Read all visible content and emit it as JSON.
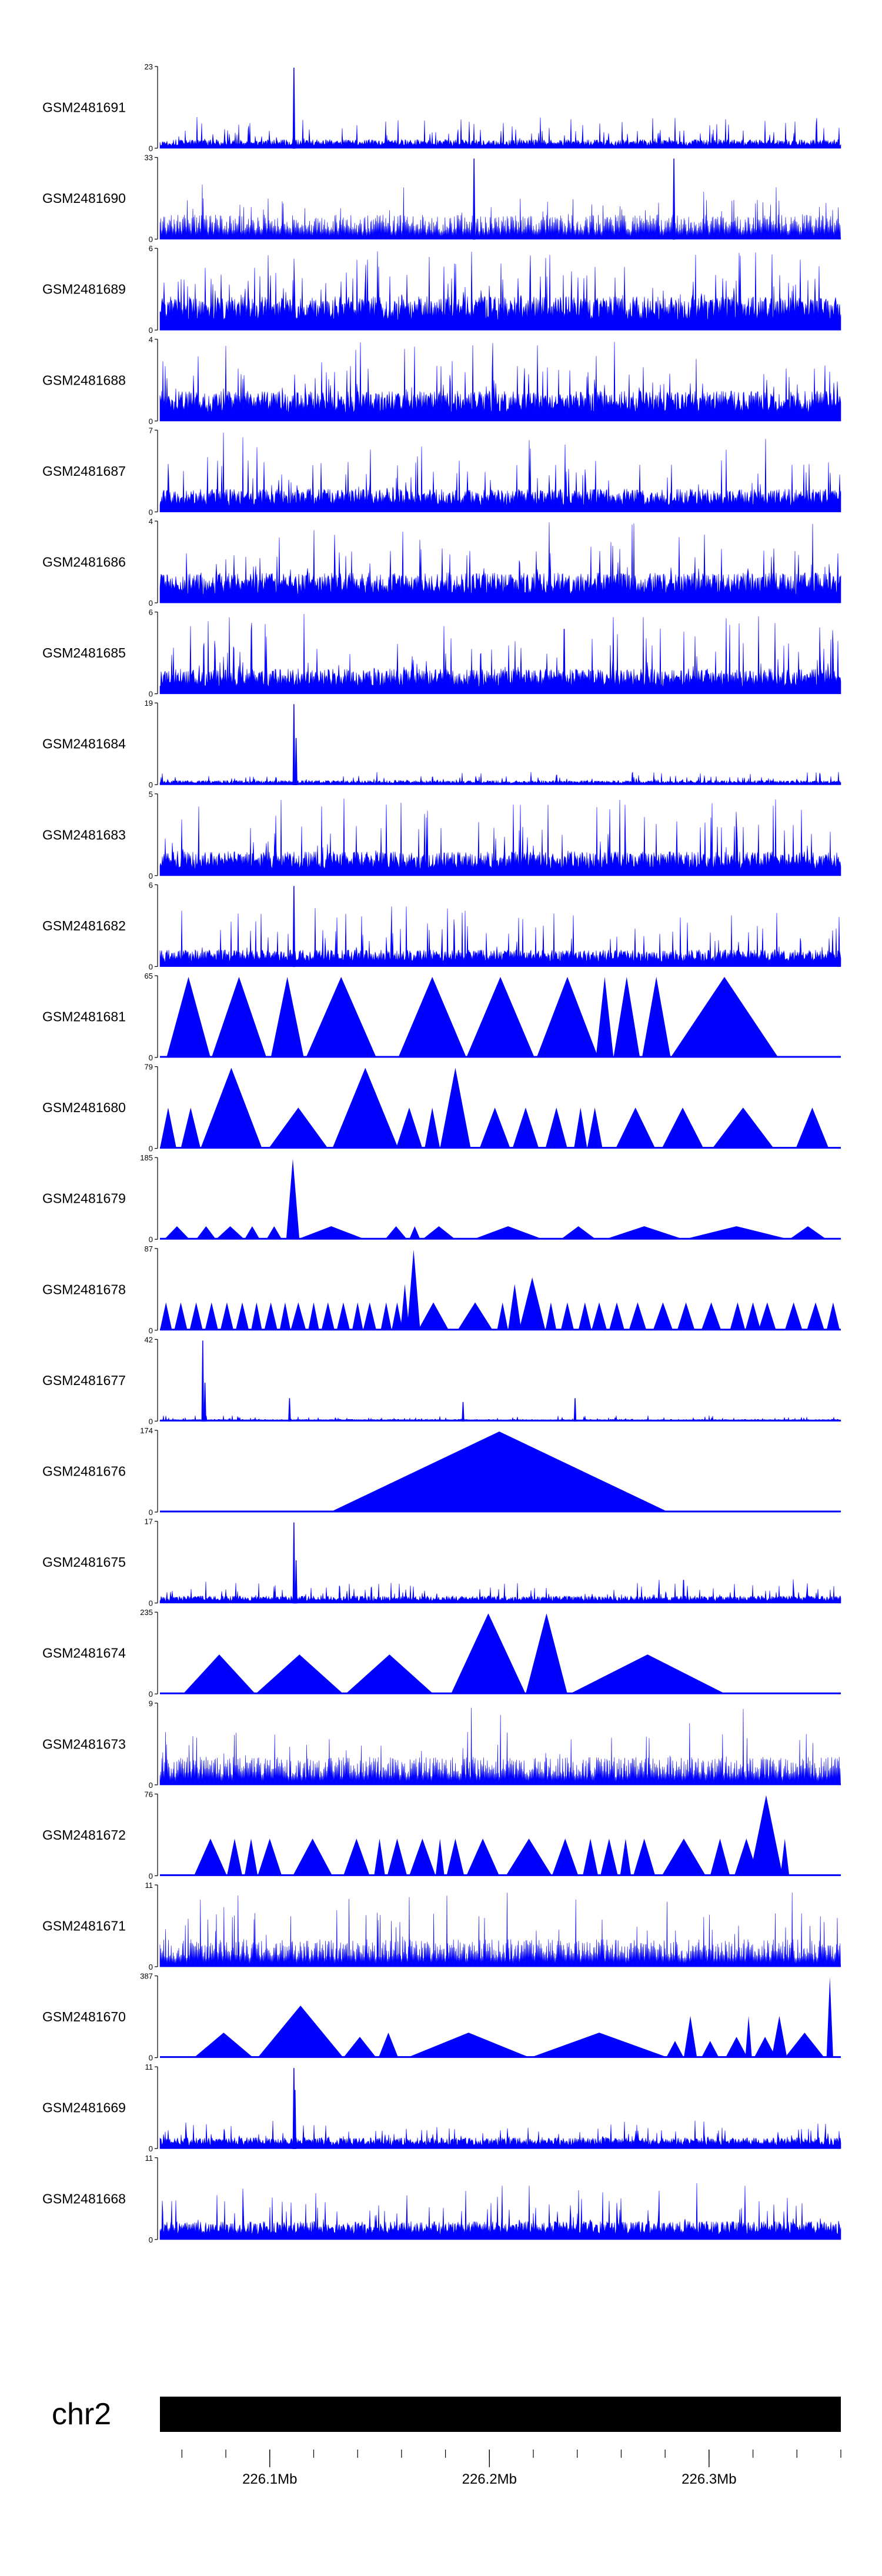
{
  "colors": {
    "signal": "#0000ff",
    "axis": "#000000",
    "ideogram": "#000000"
  },
  "chart_data": {
    "type": "area",
    "title": "",
    "chromosome": "chr2",
    "x_unit": "Mb",
    "xlim": [
      226.05,
      226.36
    ],
    "x_ticks": [
      {
        "value": 226.1,
        "label": "226.1Mb"
      },
      {
        "value": 226.2,
        "label": "226.2Mb"
      },
      {
        "value": 226.3,
        "label": "226.3Mb"
      }
    ],
    "minor_tick_step": 0.02,
    "tracks": [
      {
        "name": "GSM2481691",
        "ymax": 23,
        "ymax_label": "23",
        "style": "dense",
        "base": 2,
        "spikes": [
          [
            226.111,
            23
          ]
        ],
        "peak": 9
      },
      {
        "name": "GSM2481690",
        "ymax": 33,
        "ymax_label": "33",
        "style": "comb",
        "base": 8,
        "spikes": [
          [
            226.193,
            33
          ],
          [
            226.284,
            33
          ]
        ],
        "peak": 24
      },
      {
        "name": "GSM2481689",
        "ymax": 6,
        "ymax_label": "6",
        "style": "dense",
        "base": 2,
        "spikes": [],
        "peak": 6
      },
      {
        "name": "GSM2481688",
        "ymax": 4,
        "ymax_label": "4",
        "style": "dense",
        "base": 1.2,
        "spikes": [],
        "peak": 4
      },
      {
        "name": "GSM2481687",
        "ymax": 7,
        "ymax_label": "7",
        "style": "dense",
        "base": 1.6,
        "spikes": [],
        "peak": 7
      },
      {
        "name": "GSM2481686",
        "ymax": 4,
        "ymax_label": "4",
        "style": "dense",
        "base": 1.2,
        "spikes": [],
        "peak": 4
      },
      {
        "name": "GSM2481685",
        "ymax": 6,
        "ymax_label": "6",
        "style": "dense",
        "base": 1.5,
        "spikes": [],
        "peak": 6
      },
      {
        "name": "GSM2481684",
        "ymax": 19,
        "ymax_label": "19",
        "style": "dense",
        "base": 0.8,
        "spikes": [
          [
            226.111,
            19
          ],
          [
            226.112,
            11
          ]
        ],
        "peak": 3
      },
      {
        "name": "GSM2481683",
        "ymax": 5,
        "ymax_label": "5",
        "style": "dense",
        "base": 1.2,
        "spikes": [],
        "peak": 5
      },
      {
        "name": "GSM2481682",
        "ymax": 6,
        "ymax_label": "6",
        "style": "dense",
        "base": 1.0,
        "spikes": [
          [
            226.111,
            6
          ]
        ],
        "peak": 4.5
      },
      {
        "name": "GSM2481681",
        "ymax": 65,
        "ymax_label": "65",
        "style": "triangles",
        "tris": [
          [
            226.053,
            226.073,
            65
          ],
          [
            226.0735,
            226.0985,
            65
          ],
          [
            226.1005,
            226.1155,
            65
          ],
          [
            226.1165,
            226.1485,
            65
          ],
          [
            226.1585,
            226.1895,
            65
          ],
          [
            226.1895,
            226.2205,
            65
          ],
          [
            226.2215,
            226.2495,
            65
          ],
          [
            226.2485,
            226.2565,
            65
          ],
          [
            226.2565,
            226.2685,
            65
          ],
          [
            226.2695,
            226.2825,
            65
          ],
          [
            226.2825,
            226.3315,
            65
          ]
        ]
      },
      {
        "name": "GSM2481680",
        "ymax": 79,
        "ymax_label": "79",
        "style": "triangles",
        "tris": [
          [
            226.05,
            226.0575,
            40
          ],
          [
            226.0595,
            226.0685,
            40
          ],
          [
            226.0685,
            226.0965,
            79
          ],
          [
            226.0995,
            226.1265,
            40
          ],
          [
            226.1285,
            226.1585,
            79
          ],
          [
            226.1575,
            226.1695,
            40
          ],
          [
            226.1705,
            226.1775,
            40
          ],
          [
            226.1775,
            226.1915,
            79
          ],
          [
            226.1955,
            226.2095,
            40
          ],
          [
            226.2105,
            226.2225,
            40
          ],
          [
            226.2255,
            226.2355,
            40
          ],
          [
            226.2385,
            226.2445,
            40
          ],
          [
            226.2445,
            226.2515,
            40
          ],
          [
            226.2575,
            226.2755,
            40
          ],
          [
            226.2785,
            226.2975,
            40
          ],
          [
            226.3015,
            226.3295,
            40
          ],
          [
            226.3395,
            226.3545,
            40
          ]
        ]
      },
      {
        "name": "GSM2481679",
        "ymax": 185,
        "ymax_label": "185",
        "style": "triangles",
        "tris": [
          [
            226.052,
            226.0635,
            30
          ],
          [
            226.0665,
            226.0755,
            30
          ],
          [
            226.0755,
            226.0885,
            30
          ],
          [
            226.0885,
            226.0955,
            30
          ],
          [
            226.0985,
            226.1055,
            30
          ],
          [
            226.1075,
            226.1135,
            185
          ],
          [
            226.1125,
            226.1435,
            30
          ],
          [
            226.1525,
            226.1625,
            30
          ],
          [
            226.1635,
            226.1685,
            30
          ],
          [
            226.1695,
            226.1845,
            30
          ],
          [
            226.1925,
            226.2245,
            30
          ],
          [
            226.2325,
            226.2485,
            30
          ],
          [
            226.2525,
            226.2885,
            30
          ],
          [
            226.2885,
            226.3365,
            30
          ],
          [
            226.3365,
            226.3535,
            30
          ]
        ]
      },
      {
        "name": "GSM2481678",
        "ymax": 87,
        "ymax_label": "87",
        "style": "triangles",
        "tris": [
          [
            226.05,
            226.0555,
            30
          ],
          [
            226.0565,
            226.0625,
            30
          ],
          [
            226.0635,
            226.0695,
            30
          ],
          [
            226.0705,
            226.0765,
            30
          ],
          [
            226.0775,
            226.0835,
            30
          ],
          [
            226.0845,
            226.0905,
            30
          ],
          [
            226.0915,
            226.0965,
            30
          ],
          [
            226.0975,
            226.1035,
            30
          ],
          [
            226.1045,
            226.1095,
            30
          ],
          [
            226.1095,
            226.1165,
            30
          ],
          [
            226.1175,
            226.1225,
            30
          ],
          [
            226.1235,
            226.1295,
            30
          ],
          [
            226.1305,
            226.1365,
            30
          ],
          [
            226.1375,
            226.1425,
            30
          ],
          [
            226.1425,
            226.1485,
            30
          ],
          [
            226.1505,
            226.1555,
            30
          ],
          [
            226.1555,
            226.1605,
            30
          ],
          [
            226.1595,
            226.1635,
            50
          ],
          [
            226.1625,
            226.1685,
            87
          ],
          [
            226.1675,
            226.1815,
            30
          ],
          [
            226.1855,
            226.2015,
            30
          ],
          [
            226.2035,
            226.2085,
            30
          ],
          [
            226.2085,
            226.2145,
            50
          ],
          [
            226.2135,
            226.2255,
            57
          ],
          [
            226.2255,
            226.2305,
            30
          ],
          [
            226.2325,
            226.2385,
            30
          ],
          [
            226.2405,
            226.2465,
            30
          ],
          [
            226.2465,
            226.2535,
            30
          ],
          [
            226.2545,
            226.2615,
            30
          ],
          [
            226.2635,
            226.2715,
            30
          ],
          [
            226.2745,
            226.2835,
            30
          ],
          [
            226.2855,
            226.2935,
            30
          ],
          [
            226.2965,
            226.3055,
            30
          ],
          [
            226.3095,
            226.3165,
            30
          ],
          [
            226.3165,
            226.3235,
            30
          ],
          [
            226.3225,
            226.3305,
            30
          ],
          [
            226.3345,
            226.3425,
            30
          ],
          [
            226.3445,
            226.3525,
            30
          ],
          [
            226.3535,
            226.3595,
            30
          ]
        ]
      },
      {
        "name": "GSM2481677",
        "ymax": 42,
        "ymax_label": "42",
        "style": "dense",
        "base": 0.8,
        "spikes": [
          [
            226.0695,
            42
          ],
          [
            226.0705,
            20
          ],
          [
            226.109,
            12
          ],
          [
            226.188,
            10
          ],
          [
            226.239,
            12
          ]
        ],
        "peak": 3
      },
      {
        "name": "GSM2481676",
        "ymax": 174,
        "ymax_label": "174",
        "style": "triangles",
        "tris": [
          [
            226.1275,
            226.2815,
            174
          ]
        ]
      },
      {
        "name": "GSM2481675",
        "ymax": 17,
        "ymax_label": "17",
        "style": "dense",
        "base": 1.2,
        "spikes": [
          [
            226.111,
            17
          ],
          [
            226.112,
            9
          ]
        ],
        "peak": 5
      },
      {
        "name": "GSM2481674",
        "ymax": 235,
        "ymax_label": "235",
        "style": "triangles",
        "tris": [
          [
            226.0605,
            226.0935,
            115
          ],
          [
            226.0935,
            226.1335,
            115
          ],
          [
            226.1345,
            226.1745,
            115
          ],
          [
            226.1825,
            226.2165,
            235
          ],
          [
            226.2165,
            226.2355,
            235
          ],
          [
            226.2365,
            226.3075,
            115
          ]
        ]
      },
      {
        "name": "GSM2481673",
        "ymax": 9,
        "ymax_label": "9",
        "style": "comb",
        "base": 2.5,
        "spikes": [],
        "peak": 9
      },
      {
        "name": "GSM2481672",
        "ymax": 76,
        "ymax_label": "76",
        "style": "triangles",
        "tris": [
          [
            226.0655,
            226.0805,
            35
          ],
          [
            226.0805,
            226.0875,
            35
          ],
          [
            226.0885,
            226.0945,
            35
          ],
          [
            226.0945,
            226.1055,
            35
          ],
          [
            226.1105,
            226.1285,
            35
          ],
          [
            226.1335,
            226.1455,
            35
          ],
          [
            226.1475,
            226.1525,
            35
          ],
          [
            226.1535,
            226.1625,
            35
          ],
          [
            226.1635,
            226.1755,
            35
          ],
          [
            226.1755,
            226.1795,
            35
          ],
          [
            226.1805,
            226.1885,
            35
          ],
          [
            226.1895,
            226.2045,
            35
          ],
          [
            226.2075,
            226.2285,
            35
          ],
          [
            226.2285,
            226.2405,
            35
          ],
          [
            226.2425,
            226.2495,
            35
          ],
          [
            226.2505,
            226.2585,
            35
          ],
          [
            226.2595,
            226.2645,
            35
          ],
          [
            226.2655,
            226.2755,
            35
          ],
          [
            226.2785,
            226.2985,
            35
          ],
          [
            226.3005,
            226.3095,
            35
          ],
          [
            226.3115,
            226.3225,
            35
          ],
          [
            226.3185,
            226.3335,
            76
          ],
          [
            226.3325,
            226.3365,
            35
          ]
        ]
      },
      {
        "name": "GSM2481671",
        "ymax": 11,
        "ymax_label": "11",
        "style": "comb",
        "base": 3,
        "spikes": [],
        "peak": 11
      },
      {
        "name": "GSM2481670",
        "ymax": 387,
        "ymax_label": "387",
        "style": "triangles",
        "tris": [
          [
            226.0655,
            226.0925,
            120
          ],
          [
            226.0945,
            226.1335,
            250
          ],
          [
            226.1335,
            226.1485,
            100
          ],
          [
            226.1495,
            226.1585,
            120
          ],
          [
            226.1625,
            226.2185,
            120
          ],
          [
            226.2185,
            226.2815,
            120
          ],
          [
            226.2805,
            226.2885,
            80
          ],
          [
            226.2885,
            226.2945,
            200
          ],
          [
            226.2965,
            226.3045,
            80
          ],
          [
            226.3075,
            226.3175,
            100
          ],
          [
            226.3165,
            226.3195,
            200
          ],
          [
            226.3205,
            226.3305,
            100
          ],
          [
            226.3285,
            226.3355,
            200
          ],
          [
            226.3345,
            226.3525,
            120
          ],
          [
            226.3535,
            226.3565,
            387
          ]
        ]
      },
      {
        "name": "GSM2481669",
        "ymax": 11,
        "ymax_label": "11",
        "style": "dense",
        "base": 1.2,
        "spikes": [
          [
            226.111,
            11
          ],
          [
            226.1115,
            8
          ]
        ],
        "peak": 4
      },
      {
        "name": "GSM2481668",
        "ymax": 11,
        "ymax_label": "11",
        "style": "dense",
        "base": 2.0,
        "spikes": [],
        "peak": 8
      }
    ]
  }
}
